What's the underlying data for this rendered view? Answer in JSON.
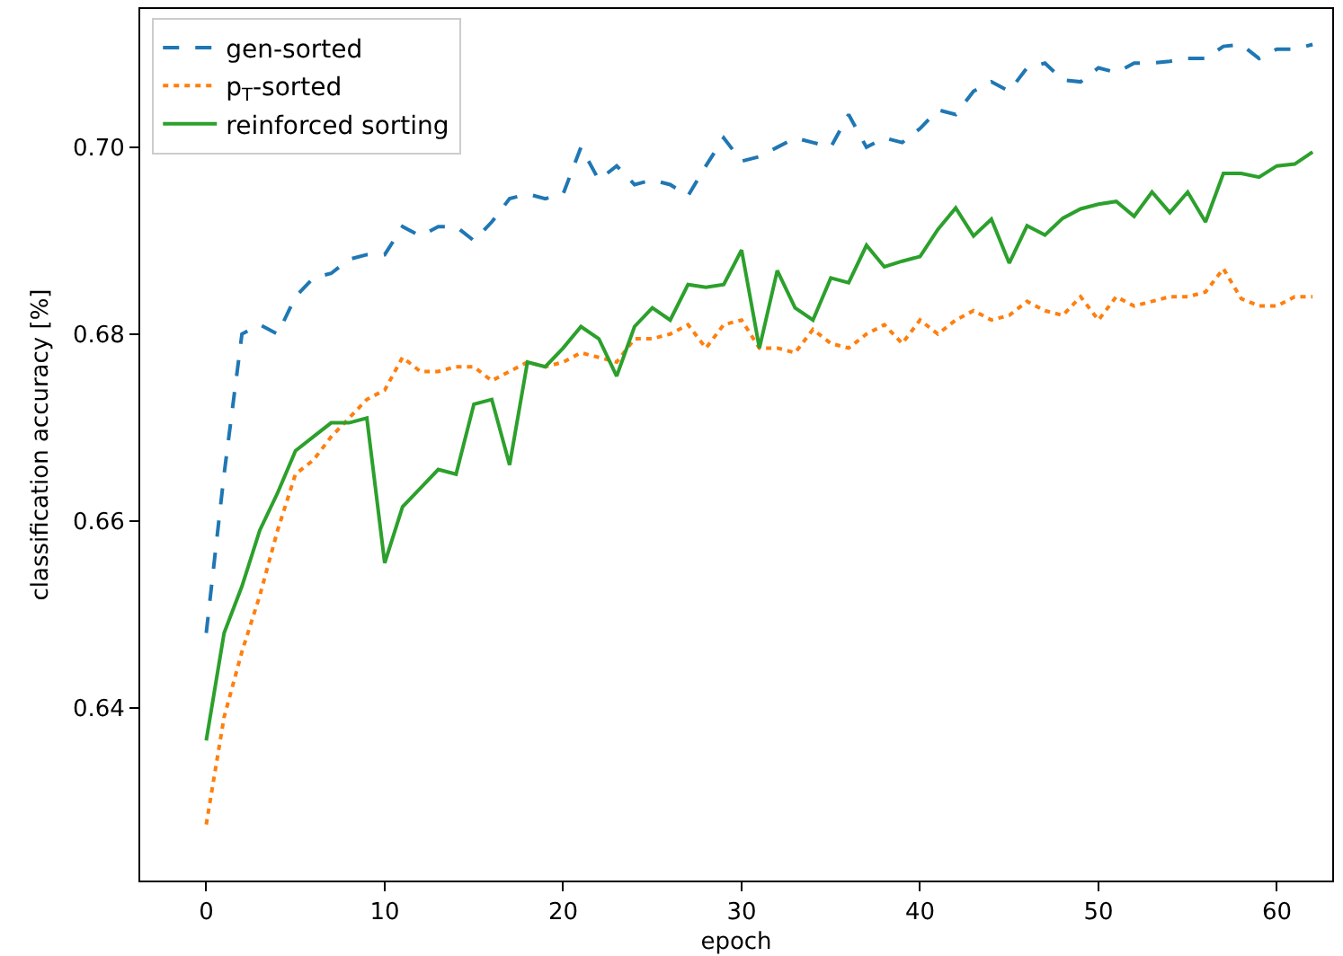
{
  "chart_data": {
    "type": "line",
    "xlabel": "epoch",
    "ylabel": "classification accuracy [%]",
    "x": [
      0,
      1,
      2,
      3,
      4,
      5,
      6,
      7,
      8,
      9,
      10,
      11,
      12,
      13,
      14,
      15,
      16,
      17,
      18,
      19,
      20,
      21,
      22,
      23,
      24,
      25,
      26,
      27,
      28,
      29,
      30,
      31,
      32,
      33,
      34,
      35,
      36,
      37,
      38,
      39,
      40,
      41,
      42,
      43,
      44,
      45,
      46,
      47,
      48,
      49,
      50,
      51,
      52,
      53,
      54,
      55,
      56,
      57,
      58,
      59,
      60,
      61,
      62
    ],
    "xlim": [
      -3.7,
      63.1
    ],
    "xticks": [
      0,
      10,
      20,
      30,
      40,
      50,
      60
    ],
    "ylim": [
      0.6215,
      0.7148
    ],
    "yticks": [
      {
        "value": 0.64,
        "label": "0.64"
      },
      {
        "value": 0.66,
        "label": "0.66"
      },
      {
        "value": 0.68,
        "label": "0.68"
      },
      {
        "value": 0.7,
        "label": "0.70"
      }
    ],
    "grid": false,
    "legend": "top left",
    "marker": "none",
    "series": [
      {
        "name": "gen-sorted",
        "color": "#1f77b4",
        "line_style": "dashed",
        "values": [
          0.648,
          0.665,
          0.68,
          0.681,
          0.68,
          0.684,
          0.686,
          0.6865,
          0.688,
          0.6885,
          0.6885,
          0.6915,
          0.6905,
          0.6915,
          0.6915,
          0.69,
          0.692,
          0.6945,
          0.695,
          0.6945,
          0.695,
          0.7,
          0.6965,
          0.698,
          0.696,
          0.6965,
          0.696,
          0.6948,
          0.698,
          0.701,
          0.6985,
          0.699,
          0.7,
          0.701,
          0.7005,
          0.7,
          0.7035,
          0.7,
          0.701,
          0.7005,
          0.702,
          0.704,
          0.7035,
          0.706,
          0.707,
          0.706,
          0.7085,
          0.709,
          0.7072,
          0.707,
          0.7085,
          0.708,
          0.709,
          0.709,
          0.7092,
          0.7095,
          0.7095,
          0.7108,
          0.711,
          0.7095,
          0.7105,
          0.7105,
          0.711
        ]
      },
      {
        "name": "p$_{T}$-sorted",
        "color": "#ff7f0e",
        "line_style": "dotted",
        "values": [
          0.6275,
          0.639,
          0.646,
          0.652,
          0.659,
          0.665,
          0.6665,
          0.669,
          0.671,
          0.673,
          0.674,
          0.6775,
          0.676,
          0.676,
          0.6765,
          0.6765,
          0.675,
          0.676,
          0.677,
          0.6765,
          0.677,
          0.678,
          0.6775,
          0.677,
          0.6795,
          0.6795,
          0.68,
          0.681,
          0.6785,
          0.681,
          0.6815,
          0.6785,
          0.6785,
          0.678,
          0.6805,
          0.679,
          0.6785,
          0.68,
          0.681,
          0.679,
          0.6815,
          0.68,
          0.6815,
          0.6825,
          0.6815,
          0.682,
          0.6835,
          0.6825,
          0.682,
          0.684,
          0.6815,
          0.684,
          0.683,
          0.6835,
          0.684,
          0.684,
          0.6845,
          0.687,
          0.6838,
          0.683,
          0.683,
          0.684,
          0.684
        ]
      },
      {
        "name": "reinforced sorting",
        "color": "#2ca02c",
        "line_style": "solid",
        "values": [
          0.6365,
          0.648,
          0.653,
          0.659,
          0.663,
          0.6675,
          0.669,
          0.6705,
          0.6705,
          0.671,
          0.6555,
          0.6615,
          0.6635,
          0.6655,
          0.665,
          0.6725,
          0.673,
          0.666,
          0.677,
          0.6765,
          0.6785,
          0.6808,
          0.6795,
          0.6755,
          0.6808,
          0.6828,
          0.6815,
          0.6853,
          0.685,
          0.6853,
          0.689,
          0.6785,
          0.6868,
          0.6828,
          0.6815,
          0.686,
          0.6855,
          0.6895,
          0.6872,
          0.6878,
          0.6883,
          0.6912,
          0.6935,
          0.6905,
          0.6923,
          0.6876,
          0.6916,
          0.6906,
          0.6924,
          0.6934,
          0.6939,
          0.6942,
          0.6926,
          0.6952,
          0.693,
          0.6952,
          0.692,
          0.6972,
          0.6972,
          0.6968,
          0.698,
          0.6982,
          0.6995
        ]
      }
    ]
  }
}
